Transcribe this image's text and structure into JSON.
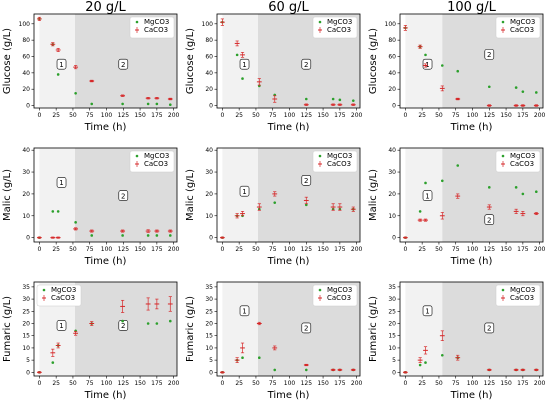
{
  "chart_data": [
    {
      "type": "scatter",
      "title": "20 g/L",
      "ylabel": "Glucose (g/L)",
      "xlabel": "Time (h)",
      "xlim": [
        -8,
        205
      ],
      "ylim": [
        -3,
        112
      ],
      "xticks": [
        0,
        25,
        50,
        75,
        100,
        125,
        150,
        175,
        200
      ],
      "yticks": [
        0,
        20,
        40,
        60,
        80,
        100
      ],
      "regions": [
        {
          "x0": 0,
          "x1": 53,
          "label": "1"
        },
        {
          "x0": 53,
          "x1": 205,
          "label": "2"
        }
      ],
      "phase_labels": [
        {
          "text": "1",
          "x": 33,
          "y": 50
        },
        {
          "text": "2",
          "x": 125,
          "y": 50
        }
      ],
      "legend": [
        "MgCO3",
        "CaCO3"
      ],
      "legend_position": "top-right",
      "series": [
        {
          "name": "MgCO3",
          "marker": "dot",
          "color": "#2ca02c",
          "x": [
            0,
            20,
            28,
            54,
            78,
            124,
            162,
            175,
            195
          ],
          "y": [
            106,
            75,
            38,
            15,
            2,
            2,
            2,
            2,
            1
          ]
        },
        {
          "name": "CaCO3",
          "marker": "errorbar",
          "color": "#d62728",
          "x": [
            0,
            20,
            28,
            54,
            78,
            124,
            162,
            175,
            195
          ],
          "y": [
            106,
            75,
            68,
            47,
            30,
            12,
            9,
            9,
            8
          ],
          "err": [
            2,
            2,
            2,
            2,
            1,
            1,
            1,
            1,
            1
          ]
        }
      ]
    },
    {
      "type": "scatter",
      "title": "60 g/L",
      "ylabel": "Glucose (g/L)",
      "xlabel": "Time (h)",
      "xlim": [
        -8,
        205
      ],
      "ylim": [
        -3,
        112
      ],
      "xticks": [
        0,
        25,
        50,
        75,
        100,
        125,
        150,
        175,
        200
      ],
      "yticks": [
        0,
        20,
        40,
        60,
        80,
        100
      ],
      "regions": [
        {
          "x0": 0,
          "x1": 53,
          "label": "1"
        },
        {
          "x0": 53,
          "x1": 205,
          "label": "2"
        }
      ],
      "phase_labels": [
        {
          "text": "1",
          "x": 33,
          "y": 50
        },
        {
          "text": "2",
          "x": 125,
          "y": 50
        }
      ],
      "legend": [
        "MgCO3",
        "CaCO3"
      ],
      "legend_position": "top-right",
      "series": [
        {
          "name": "MgCO3",
          "marker": "dot",
          "color": "#2ca02c",
          "x": [
            0,
            22,
            30,
            55,
            78,
            125,
            165,
            175,
            195
          ],
          "y": [
            102,
            62,
            33,
            24,
            13,
            8,
            8,
            7,
            6
          ]
        },
        {
          "name": "CaCO3",
          "marker": "errorbar",
          "color": "#d62728",
          "x": [
            0,
            22,
            30,
            55,
            78,
            125,
            165,
            175,
            195
          ],
          "y": [
            102,
            76,
            62,
            29,
            8,
            1,
            1,
            1,
            1
          ],
          "err": [
            4,
            3,
            3,
            4,
            4,
            1,
            1,
            1,
            1
          ]
        }
      ]
    },
    {
      "type": "scatter",
      "title": "100 g/L",
      "ylabel": "Glucose (g/L)",
      "xlabel": "Time (h)",
      "xlim": [
        -8,
        205
      ],
      "ylim": [
        -3,
        112
      ],
      "xticks": [
        0,
        25,
        50,
        75,
        100,
        125,
        150,
        175,
        200
      ],
      "yticks": [
        0,
        20,
        40,
        60,
        80,
        100
      ],
      "regions": [
        {
          "x0": 0,
          "x1": 55,
          "label": "1"
        },
        {
          "x0": 55,
          "x1": 205,
          "label": "2"
        }
      ],
      "phase_labels": [
        {
          "text": "1",
          "x": 33,
          "y": 50
        },
        {
          "text": "2",
          "x": 125,
          "y": 62
        }
      ],
      "legend": [
        "MgCO3",
        "CaCO3"
      ],
      "legend_position": "top-right",
      "series": [
        {
          "name": "MgCO3",
          "marker": "dot",
          "color": "#2ca02c",
          "x": [
            0,
            22,
            30,
            55,
            78,
            125,
            165,
            175,
            195
          ],
          "y": [
            95,
            72,
            62,
            49,
            42,
            23,
            22,
            17,
            16
          ]
        },
        {
          "name": "CaCO3",
          "marker": "errorbar",
          "color": "#d62728",
          "x": [
            0,
            22,
            30,
            55,
            78,
            125,
            165,
            175,
            195
          ],
          "y": [
            95,
            72,
            49,
            21,
            8,
            0,
            0,
            0,
            0
          ],
          "err": [
            3,
            2,
            2,
            3,
            1,
            1,
            1,
            1,
            1
          ]
        }
      ]
    },
    {
      "type": "scatter",
      "title": "",
      "ylabel": "Malic (g/L)",
      "xlabel": "Time (h)",
      "xlim": [
        -8,
        205
      ],
      "ylim": [
        -2,
        41
      ],
      "xticks": [
        0,
        25,
        50,
        75,
        100,
        125,
        150,
        175,
        200
      ],
      "yticks": [
        0,
        10,
        20,
        30,
        40
      ],
      "regions": [
        {
          "x0": 0,
          "x1": 53,
          "label": "1"
        },
        {
          "x0": 53,
          "x1": 205,
          "label": "2"
        }
      ],
      "phase_labels": [
        {
          "text": "1",
          "x": 33,
          "y": 25
        },
        {
          "text": "2",
          "x": 125,
          "y": 19
        }
      ],
      "legend": [
        "MgCO3",
        "CaCO3"
      ],
      "legend_position": "top-right",
      "series": [
        {
          "name": "MgCO3",
          "marker": "dot",
          "color": "#2ca02c",
          "x": [
            0,
            20,
            28,
            54,
            78,
            124,
            162,
            175,
            195
          ],
          "y": [
            0,
            12,
            12,
            7,
            1,
            1,
            1,
            1,
            1
          ]
        },
        {
          "name": "CaCO3",
          "marker": "errorbar",
          "color": "#d62728",
          "x": [
            0,
            20,
            28,
            54,
            78,
            124,
            162,
            175,
            195
          ],
          "y": [
            0,
            0,
            0,
            4,
            3,
            3,
            3,
            3,
            3
          ],
          "err": [
            0.3,
            0.3,
            0.3,
            0.5,
            0.5,
            0.5,
            0.6,
            0.5,
            0.5
          ]
        }
      ]
    },
    {
      "type": "scatter",
      "title": "",
      "ylabel": "Malic (g/L)",
      "xlabel": "Time (h)",
      "xlim": [
        -8,
        205
      ],
      "ylim": [
        -2,
        41
      ],
      "xticks": [
        0,
        25,
        50,
        75,
        100,
        125,
        150,
        175,
        200
      ],
      "yticks": [
        0,
        10,
        20,
        30,
        40
      ],
      "regions": [
        {
          "x0": 0,
          "x1": 53,
          "label": "1"
        },
        {
          "x0": 53,
          "x1": 205,
          "label": "2"
        }
      ],
      "phase_labels": [
        {
          "text": "1",
          "x": 33,
          "y": 21
        },
        {
          "text": "2",
          "x": 125,
          "y": 26
        }
      ],
      "legend": [
        "MgCO3",
        "CaCO3"
      ],
      "legend_position": "top-right",
      "series": [
        {
          "name": "MgCO3",
          "marker": "dot",
          "color": "#2ca02c",
          "x": [
            0,
            22,
            30,
            55,
            78,
            125,
            165,
            175,
            195
          ],
          "y": [
            0,
            10,
            10,
            13,
            16,
            15,
            13,
            13,
            13
          ]
        },
        {
          "name": "CaCO3",
          "marker": "errorbar",
          "color": "#d62728",
          "x": [
            0,
            22,
            30,
            55,
            78,
            125,
            165,
            175,
            195
          ],
          "y": [
            0,
            10,
            11,
            14,
            20,
            17,
            14,
            14,
            13
          ],
          "err": [
            0.3,
            1,
            1,
            1.5,
            1,
            1.5,
            1.5,
            1.5,
            1
          ]
        }
      ]
    },
    {
      "type": "scatter",
      "title": "",
      "ylabel": "Malic (g/L)",
      "xlabel": "Time (h)",
      "xlim": [
        -8,
        205
      ],
      "ylim": [
        -2,
        41
      ],
      "xticks": [
        0,
        25,
        50,
        75,
        100,
        125,
        150,
        175,
        200
      ],
      "yticks": [
        0,
        10,
        20,
        30,
        40
      ],
      "regions": [
        {
          "x0": 0,
          "x1": 55,
          "label": "1"
        },
        {
          "x0": 55,
          "x1": 205,
          "label": "2"
        }
      ],
      "phase_labels": [
        {
          "text": "1",
          "x": 33,
          "y": 19
        },
        {
          "text": "2",
          "x": 125,
          "y": 8
        }
      ],
      "legend": [
        "MgCO3",
        "CaCO3"
      ],
      "legend_position": "top-right",
      "series": [
        {
          "name": "MgCO3",
          "marker": "dot",
          "color": "#2ca02c",
          "x": [
            0,
            22,
            30,
            55,
            78,
            125,
            165,
            175,
            195
          ],
          "y": [
            0,
            12,
            25,
            26,
            33,
            23,
            23,
            20,
            21
          ]
        },
        {
          "name": "CaCO3",
          "marker": "errorbar",
          "color": "#d62728",
          "x": [
            0,
            22,
            30,
            55,
            78,
            125,
            165,
            175,
            195
          ],
          "y": [
            0,
            8,
            8,
            10,
            19,
            14,
            12,
            11,
            11
          ],
          "err": [
            0.3,
            0.5,
            0.5,
            1.5,
            1,
            1,
            1,
            1,
            0.5
          ]
        }
      ]
    },
    {
      "type": "scatter",
      "title": "",
      "ylabel": "Fumaric (g/L)",
      "xlabel": "Time (h)",
      "xlim": [
        -8,
        205
      ],
      "ylim": [
        -1.5,
        37
      ],
      "xticks": [
        0,
        25,
        50,
        75,
        100,
        125,
        150,
        175,
        200
      ],
      "yticks": [
        0,
        5,
        10,
        15,
        20,
        25,
        30,
        35
      ],
      "regions": [
        {
          "x0": 0,
          "x1": 53,
          "label": "1"
        },
        {
          "x0": 53,
          "x1": 205,
          "label": "2"
        }
      ],
      "phase_labels": [
        {
          "text": "1",
          "x": 33,
          "y": 19
        },
        {
          "text": "2",
          "x": 125,
          "y": 19
        }
      ],
      "legend": [
        "MgCO3",
        "CaCO3"
      ],
      "legend_position": "top-left",
      "series": [
        {
          "name": "MgCO3",
          "marker": "dot",
          "color": "#2ca02c",
          "x": [
            0,
            20,
            28,
            54,
            78,
            124,
            162,
            175,
            195
          ],
          "y": [
            0,
            4,
            11,
            17,
            20,
            21,
            20,
            20,
            21
          ]
        },
        {
          "name": "CaCO3",
          "marker": "errorbar",
          "color": "#d62728",
          "x": [
            0,
            20,
            28,
            54,
            78,
            124,
            162,
            175,
            195
          ],
          "y": [
            0,
            8,
            11,
            16,
            20,
            27,
            28,
            28,
            28
          ],
          "err": [
            0.3,
            1.5,
            1,
            0.8,
            0.8,
            2.5,
            2.5,
            2,
            3
          ]
        }
      ]
    },
    {
      "type": "scatter",
      "title": "",
      "ylabel": "Fumaric (g/L)",
      "xlabel": "Time (h)",
      "xlim": [
        -8,
        205
      ],
      "ylim": [
        -1.5,
        37
      ],
      "xticks": [
        0,
        25,
        50,
        75,
        100,
        125,
        150,
        175,
        200
      ],
      "yticks": [
        0,
        5,
        10,
        15,
        20,
        25,
        30,
        35
      ],
      "regions": [
        {
          "x0": 0,
          "x1": 53,
          "label": "1"
        },
        {
          "x0": 53,
          "x1": 205,
          "label": "2"
        }
      ],
      "phase_labels": [
        {
          "text": "1",
          "x": 33,
          "y": 25
        },
        {
          "text": "2",
          "x": 125,
          "y": 18
        }
      ],
      "legend": [
        "MgCO3",
        "CaCO3"
      ],
      "legend_position": "top-right",
      "series": [
        {
          "name": "MgCO3",
          "marker": "dot",
          "color": "#2ca02c",
          "x": [
            0,
            22,
            30,
            55,
            78,
            125,
            165,
            175,
            195
          ],
          "y": [
            0,
            5,
            6,
            6,
            1,
            1,
            1,
            1,
            1
          ]
        },
        {
          "name": "CaCO3",
          "marker": "errorbar",
          "color": "#d62728",
          "x": [
            0,
            22,
            30,
            55,
            78,
            125,
            165,
            175,
            195
          ],
          "y": [
            0,
            5,
            10,
            20,
            10,
            3,
            1,
            1,
            1
          ],
          "err": [
            0.3,
            1,
            2,
            0.5,
            0.8,
            0.3,
            0.3,
            0.3,
            0.3
          ]
        }
      ]
    },
    {
      "type": "scatter",
      "title": "",
      "ylabel": "Fumaric (g/L)",
      "xlabel": "Time (h)",
      "xlim": [
        -8,
        205
      ],
      "ylim": [
        -1.5,
        37
      ],
      "xticks": [
        0,
        25,
        50,
        75,
        100,
        125,
        150,
        175,
        200
      ],
      "yticks": [
        0,
        5,
        10,
        15,
        20,
        25,
        30,
        35
      ],
      "regions": [
        {
          "x0": 0,
          "x1": 55,
          "label": "1"
        },
        {
          "x0": 55,
          "x1": 205,
          "label": "2"
        }
      ],
      "phase_labels": [
        {
          "text": "1",
          "x": 33,
          "y": 25
        },
        {
          "text": "2",
          "x": 125,
          "y": 18
        }
      ],
      "legend": [
        "MgCO3",
        "CaCO3"
      ],
      "legend_position": "top-right",
      "series": [
        {
          "name": "MgCO3",
          "marker": "dot",
          "color": "#2ca02c",
          "x": [
            0,
            22,
            30,
            55,
            78,
            125,
            165,
            175,
            195
          ],
          "y": [
            0,
            3,
            4,
            7,
            6,
            1,
            1,
            1,
            1
          ]
        },
        {
          "name": "CaCO3",
          "marker": "errorbar",
          "color": "#d62728",
          "x": [
            0,
            22,
            30,
            55,
            78,
            125,
            165,
            175,
            195
          ],
          "y": [
            0,
            5,
            9,
            15,
            6,
            1,
            1,
            1,
            1
          ],
          "err": [
            0.3,
            1,
            1.5,
            2,
            1,
            0.3,
            0.3,
            0.3,
            0.3
          ]
        }
      ]
    }
  ],
  "colors": {
    "region1": "#f2f2f2",
    "region2": "#dcdcdc",
    "mgco3": "#2ca02c",
    "caco3": "#d62728",
    "axis": "#000000"
  }
}
